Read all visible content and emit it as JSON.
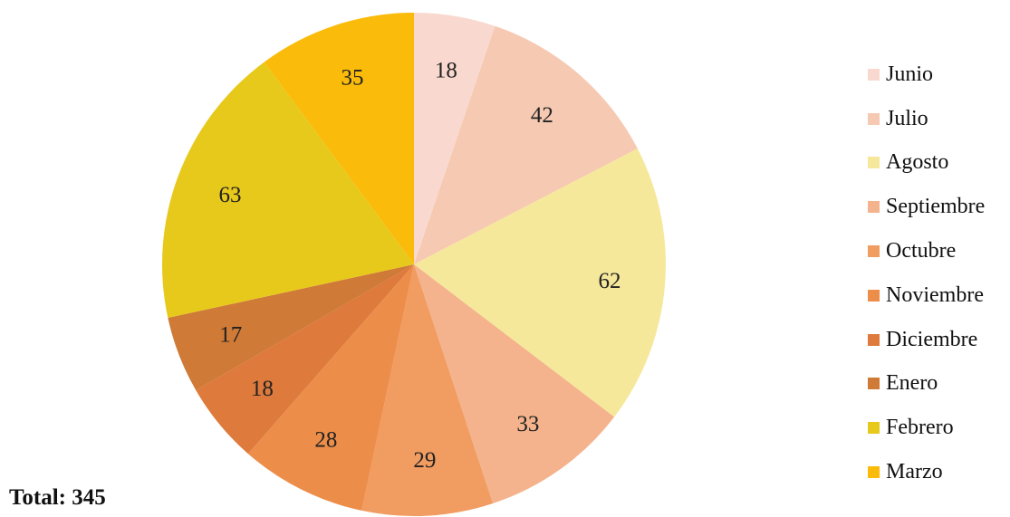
{
  "chart_data": {
    "type": "pie",
    "categories": [
      "Junio",
      "Julio",
      "Agosto",
      "Septiembre",
      "Octubre",
      "Noviembre",
      "Diciembre",
      "Enero",
      "Febrero",
      "Marzo"
    ],
    "values": [
      18,
      42,
      62,
      33,
      29,
      28,
      18,
      17,
      63,
      35
    ],
    "colors": [
      "#f9d9cf",
      "#f6c9b2",
      "#f6e89b",
      "#f4b38c",
      "#f19c61",
      "#ec8d4a",
      "#dd7a3c",
      "#cf7a36",
      "#e7c91c",
      "#fbbb0a"
    ],
    "legend_position": "right",
    "start": "top",
    "direction": "clockwise"
  },
  "total": {
    "label": "Total:",
    "value": "345"
  }
}
